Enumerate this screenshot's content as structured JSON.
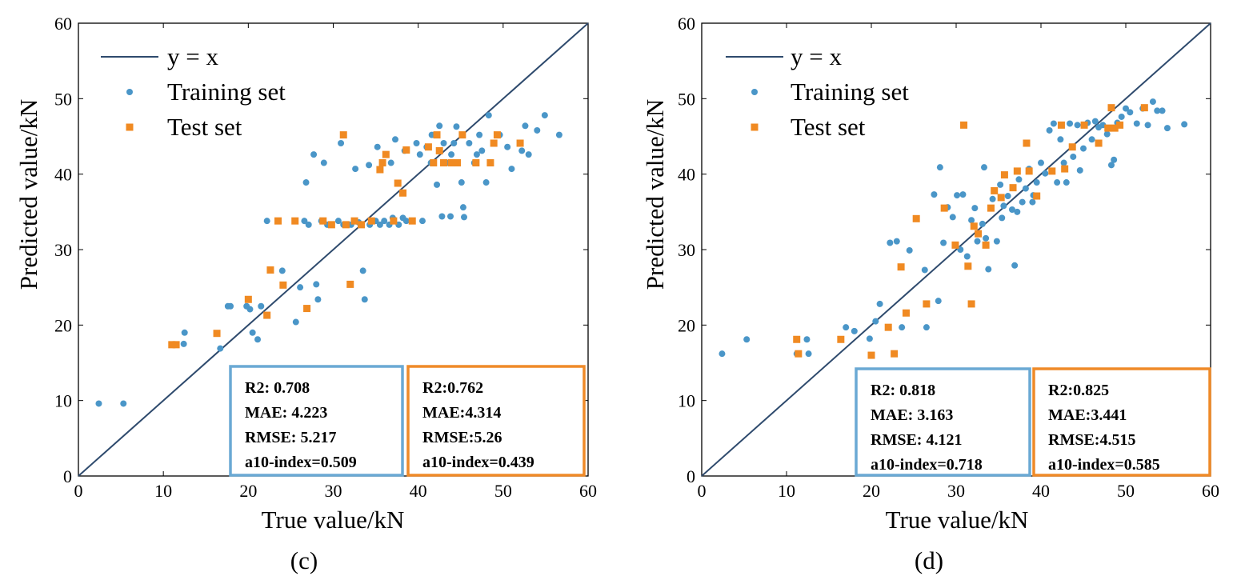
{
  "chart_data": [
    {
      "type": "scatter",
      "panel_label": "(c)",
      "xlabel": "True value/kN",
      "ylabel": "Predicted value/kN",
      "xlim": [
        0,
        60
      ],
      "ylim": [
        0,
        60
      ],
      "xticks": [
        0,
        10,
        20,
        30,
        40,
        50,
        60
      ],
      "yticks": [
        0,
        10,
        20,
        30,
        40,
        50,
        60
      ],
      "grid": false,
      "legend_position": "top-left",
      "reference_line": {
        "name": "y = x",
        "color": "#2e4a6d"
      },
      "series": [
        {
          "name": "Training set",
          "marker": "circle",
          "color": "#4a96c8",
          "points": [
            [
              2.4,
              9.6
            ],
            [
              5.3,
              9.6
            ],
            [
              12.4,
              17.5
            ],
            [
              12.5,
              19
            ],
            [
              16.7,
              16.9
            ],
            [
              17.6,
              22.5
            ],
            [
              17.9,
              22.5
            ],
            [
              19.8,
              22.5
            ],
            [
              20.2,
              22.1
            ],
            [
              20.5,
              19
            ],
            [
              21.1,
              18.1
            ],
            [
              21.5,
              22.5
            ],
            [
              22.2,
              33.8
            ],
            [
              24,
              27.2
            ],
            [
              25.6,
              20.4
            ],
            [
              26.1,
              25
            ],
            [
              26.6,
              33.8
            ],
            [
              27.1,
              33.3
            ],
            [
              28,
              25.4
            ],
            [
              28.2,
              23.4
            ],
            [
              28.6,
              33.8
            ],
            [
              29.3,
              33.3
            ],
            [
              30.6,
              33.8
            ],
            [
              31.2,
              33.3
            ],
            [
              32.1,
              33.3
            ],
            [
              33,
              33.6
            ],
            [
              33.5,
              27.2
            ],
            [
              33.7,
              23.4
            ],
            [
              34.3,
              33.3
            ],
            [
              35,
              33.8
            ],
            [
              35.5,
              33.3
            ],
            [
              36,
              33.8
            ],
            [
              36.6,
              33.3
            ],
            [
              37,
              34.2
            ],
            [
              37.7,
              33.3
            ],
            [
              38.2,
              34.2
            ],
            [
              38.6,
              33.8
            ],
            [
              39.3,
              33.8
            ],
            [
              40.5,
              33.8
            ],
            [
              26.8,
              38.9
            ],
            [
              27.7,
              42.6
            ],
            [
              28.9,
              41.5
            ],
            [
              30.9,
              44.1
            ],
            [
              32.6,
              40.7
            ],
            [
              34.2,
              41.2
            ],
            [
              35.2,
              43.6
            ],
            [
              36.8,
              41.5
            ],
            [
              37.3,
              44.6
            ],
            [
              38.4,
              43.1
            ],
            [
              39.8,
              44.1
            ],
            [
              40.2,
              42.6
            ],
            [
              41,
              43.6
            ],
            [
              41.6,
              45.2
            ],
            [
              42.5,
              46.4
            ],
            [
              43,
              44.1
            ],
            [
              43.3,
              41.5
            ],
            [
              43.9,
              42.6
            ],
            [
              44.5,
              46.3
            ],
            [
              45.1,
              38.9
            ],
            [
              45.3,
              35.6
            ],
            [
              45.4,
              34.3
            ],
            [
              46,
              44.1
            ],
            [
              46.9,
              42.6
            ],
            [
              47.2,
              45.2
            ],
            [
              47.5,
              43.1
            ],
            [
              48,
              38.9
            ],
            [
              48.3,
              47.8
            ],
            [
              48.9,
              44.1
            ],
            [
              49.6,
              45.2
            ],
            [
              50.5,
              43.6
            ],
            [
              51,
              40.7
            ],
            [
              52.2,
              43.1
            ],
            [
              52.6,
              46.4
            ],
            [
              53,
              42.6
            ],
            [
              54,
              45.8
            ],
            [
              54.9,
              47.8
            ],
            [
              56.6,
              45.2
            ],
            [
              41.5,
              41.5
            ],
            [
              44.2,
              44.1
            ],
            [
              46.6,
              41.5
            ],
            [
              42.2,
              38.6
            ],
            [
              43.8,
              34.4
            ],
            [
              42.8,
              34.4
            ]
          ]
        },
        {
          "name": "Test set",
          "marker": "square",
          "color": "#f08a22",
          "points": [
            [
              11,
              17.4
            ],
            [
              11.5,
              17.4
            ],
            [
              16.3,
              18.9
            ],
            [
              20,
              23.4
            ],
            [
              22.2,
              21.3
            ],
            [
              22.6,
              27.3
            ],
            [
              23.5,
              33.8
            ],
            [
              24.1,
              25.3
            ],
            [
              25.5,
              33.8
            ],
            [
              26.9,
              22.2
            ],
            [
              28.8,
              33.8
            ],
            [
              29.8,
              33.3
            ],
            [
              31.2,
              45.2
            ],
            [
              31.5,
              33.3
            ],
            [
              32,
              25.4
            ],
            [
              32.5,
              33.8
            ],
            [
              33.3,
              33.3
            ],
            [
              34.5,
              33.8
            ],
            [
              35.5,
              40.6
            ],
            [
              35.8,
              41.5
            ],
            [
              36.2,
              42.6
            ],
            [
              37.1,
              33.8
            ],
            [
              37.6,
              38.8
            ],
            [
              38.2,
              37.5
            ],
            [
              38.6,
              43.2
            ],
            [
              39.3,
              33.8
            ],
            [
              41.2,
              43.6
            ],
            [
              41.8,
              41.5
            ],
            [
              42.2,
              45.2
            ],
            [
              42.5,
              43.1
            ],
            [
              43,
              41.5
            ],
            [
              43.9,
              41.5
            ],
            [
              44.6,
              41.5
            ],
            [
              45.2,
              45.2
            ],
            [
              46.8,
              41.5
            ],
            [
              48.5,
              41.5
            ],
            [
              48.9,
              44.1
            ],
            [
              49.3,
              45.2
            ],
            [
              52,
              44.1
            ]
          ]
        }
      ],
      "metrics_boxes": [
        {
          "name": "Training set",
          "color": "#6aa9d4",
          "lines": [
            "R2: 0.708",
            "MAE: 4.223",
            "RMSE: 5.217",
            "a10-index=0.509"
          ]
        },
        {
          "name": "Test set",
          "color": "#ef8a28",
          "lines": [
            "R2:0.762",
            "MAE:4.314",
            "RMSE:5.26",
            "a10-index=0.439"
          ]
        }
      ]
    },
    {
      "type": "scatter",
      "panel_label": "(d)",
      "xlabel": "True value/kN",
      "ylabel": "Predicted value/kN",
      "xlim": [
        0,
        60
      ],
      "ylim": [
        0,
        60
      ],
      "xticks": [
        0,
        10,
        20,
        30,
        40,
        50,
        60
      ],
      "yticks": [
        0,
        10,
        20,
        30,
        40,
        50,
        60
      ],
      "grid": false,
      "legend_position": "top-left",
      "reference_line": {
        "name": "y = x",
        "color": "#2e4a6d"
      },
      "series": [
        {
          "name": "Training set",
          "marker": "circle",
          "color": "#4a96c8",
          "points": [
            [
              2.4,
              16.2
            ],
            [
              5.3,
              18.1
            ],
            [
              11.2,
              16.2
            ],
            [
              12.4,
              18.1
            ],
            [
              12.6,
              16.2
            ],
            [
              17,
              19.7
            ],
            [
              18,
              19.2
            ],
            [
              19.8,
              18.2
            ],
            [
              20.5,
              20.5
            ],
            [
              21,
              22.8
            ],
            [
              22.2,
              30.9
            ],
            [
              23,
              31.1
            ],
            [
              23.6,
              19.7
            ],
            [
              24.5,
              29.9
            ],
            [
              26.3,
              27.3
            ],
            [
              26.5,
              19.7
            ],
            [
              27.4,
              37.3
            ],
            [
              27.9,
              23.2
            ],
            [
              28.1,
              40.9
            ],
            [
              28.5,
              30.9
            ],
            [
              29,
              35.6
            ],
            [
              29.6,
              34.3
            ],
            [
              30.1,
              37.2
            ],
            [
              30.5,
              30
            ],
            [
              31.3,
              29.1
            ],
            [
              31.8,
              33.9
            ],
            [
              32.2,
              35.5
            ],
            [
              32.5,
              31.1
            ],
            [
              33.1,
              33.4
            ],
            [
              33.5,
              31.5
            ],
            [
              33.8,
              27.4
            ],
            [
              34.3,
              36.7
            ],
            [
              34.8,
              31.1
            ],
            [
              35.2,
              38.6
            ],
            [
              35.6,
              35.8
            ],
            [
              36.1,
              37.1
            ],
            [
              36.6,
              35.3
            ],
            [
              36.9,
              27.9
            ],
            [
              37.4,
              39.3
            ],
            [
              37.8,
              36.3
            ],
            [
              38.2,
              38.1
            ],
            [
              38.6,
              40.7
            ],
            [
              39,
              36.3
            ],
            [
              39.5,
              38.9
            ],
            [
              40,
              41.5
            ],
            [
              40.5,
              40.1
            ],
            [
              41,
              45.8
            ],
            [
              41.5,
              46.7
            ],
            [
              41.9,
              38.9
            ],
            [
              42.3,
              44.6
            ],
            [
              42.7,
              41.5
            ],
            [
              43,
              38.9
            ],
            [
              43.4,
              46.7
            ],
            [
              43.8,
              42.3
            ],
            [
              44.3,
              46.5
            ],
            [
              44.6,
              40.5
            ],
            [
              45,
              43.4
            ],
            [
              45.5,
              46.8
            ],
            [
              46,
              44.6
            ],
            [
              46.4,
              47
            ],
            [
              46.8,
              46.2
            ],
            [
              47.3,
              46.5
            ],
            [
              47.8,
              45.3
            ],
            [
              48.3,
              41.2
            ],
            [
              48.6,
              41.9
            ],
            [
              49,
              46.8
            ],
            [
              49.5,
              47.6
            ],
            [
              50,
              48.7
            ],
            [
              50.5,
              48.2
            ],
            [
              51.3,
              46.7
            ],
            [
              52,
              48.7
            ],
            [
              52.6,
              46.5
            ],
            [
              53.2,
              49.6
            ],
            [
              53.7,
              48.4
            ],
            [
              54.3,
              48.4
            ],
            [
              54.9,
              46.1
            ],
            [
              56.9,
              46.6
            ],
            [
              30.8,
              37.3
            ],
            [
              33.3,
              40.9
            ],
            [
              35.4,
              34.2
            ],
            [
              37.2,
              35
            ],
            [
              39.1,
              37.2
            ]
          ]
        },
        {
          "name": "Test set",
          "marker": "square",
          "color": "#f08a22",
          "points": [
            [
              11.2,
              18.1
            ],
            [
              11.4,
              16.2
            ],
            [
              16.4,
              18.1
            ],
            [
              20,
              16
            ],
            [
              22,
              19.7
            ],
            [
              22.7,
              16.2
            ],
            [
              23.5,
              27.7
            ],
            [
              24.1,
              21.6
            ],
            [
              25.3,
              34.1
            ],
            [
              26.5,
              22.8
            ],
            [
              28.6,
              35.5
            ],
            [
              29.9,
              30.6
            ],
            [
              30.9,
              46.5
            ],
            [
              31.4,
              27.8
            ],
            [
              31.8,
              22.8
            ],
            [
              32.1,
              33.1
            ],
            [
              32.6,
              32.1
            ],
            [
              33.5,
              30.6
            ],
            [
              34.1,
              35.5
            ],
            [
              34.5,
              37.8
            ],
            [
              35.3,
              36.9
            ],
            [
              35.7,
              39.9
            ],
            [
              36.7,
              38.2
            ],
            [
              37.2,
              40.4
            ],
            [
              38.3,
              44.1
            ],
            [
              38.6,
              40.4
            ],
            [
              39.5,
              37.1
            ],
            [
              41.3,
              40.4
            ],
            [
              42.4,
              46.5
            ],
            [
              42.8,
              40.7
            ],
            [
              43.7,
              43.6
            ],
            [
              45.1,
              46.5
            ],
            [
              46.8,
              44.1
            ],
            [
              47.9,
              46.1
            ],
            [
              48.3,
              48.8
            ],
            [
              48.7,
              46.1
            ],
            [
              49.3,
              46.5
            ],
            [
              52.2,
              48.8
            ]
          ]
        }
      ],
      "metrics_boxes": [
        {
          "name": "Training set",
          "color": "#6aa9d4",
          "lines": [
            "R2: 0.818",
            "MAE: 3.163",
            "RMSE: 4.121",
            "a10-index=0.718"
          ]
        },
        {
          "name": "Test set",
          "color": "#ef8a28",
          "lines": [
            "R2:0.825",
            "MAE:3.441",
            "RMSE:4.515",
            "a10-index=0.585"
          ]
        }
      ]
    }
  ]
}
